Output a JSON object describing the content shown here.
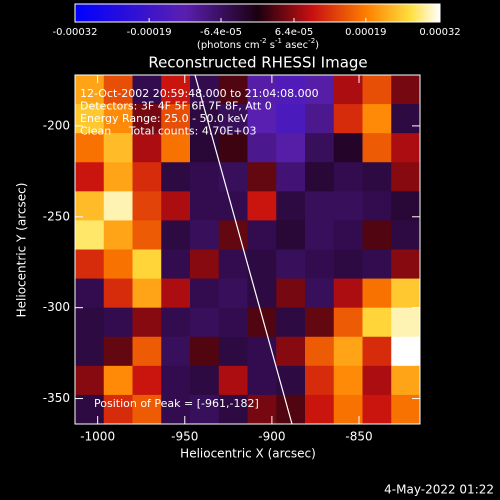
{
  "chart_data": {
    "type": "heatmap",
    "title": "Reconstructed RHESSI Image",
    "x_label": "Heliocentric X (arcsec)",
    "y_label": "Heliocentric Y (arcsec)",
    "colorbar_unit": [
      "(photons cm",
      "-2",
      " s",
      "-1",
      " asec",
      "-2",
      ")"
    ],
    "annotations": [
      "12-Oct-2002 20:59:48.000 to 21:04:08.000",
      "Detectors: 3F 4F 5F 6F 7F 8F, Att 0",
      "Energy Range: 25.0 - 50.0 keV",
      "Clean     Total counts: 4.70E+03"
    ],
    "peak_label": "Position of Peak = [-961,-182]",
    "footer": "4-May-2022 01:22",
    "xlim": [
      -1013,
      -815
    ],
    "xticks": [
      -1000,
      -950,
      -900,
      -850
    ],
    "ylim": [
      -364,
      -172
    ],
    "yticks": [
      -350,
      -300,
      -250,
      -200
    ],
    "zlim": [
      -0.00032,
      0.00032
    ],
    "zticks": [
      -0.00032,
      -0.00019,
      {
        "value": -6.4e-05,
        "label": "-6.4e-05"
      },
      {
        "value": 6.4e-05,
        "label": "6.4e-05"
      },
      0.00019,
      0.00032
    ],
    "z": [
      [
        0.00022,
        0.00015,
        -5e-05,
        0.0001,
        -5e-05,
        3e-05,
        -0.00012,
        -0.00015,
        -0.00012,
        8e-05,
        0.00015,
        5e-05
      ],
      [
        0.00025,
        0.0002,
        5e-05,
        0.00015,
        -4e-05,
        -6e-05,
        -0.00013,
        -0.00016,
        -0.0001,
        0.00012,
        0.0002,
        -4e-05
      ],
      [
        0.00018,
        0.00024,
        8e-05,
        0.00018,
        -3e-05,
        2e-05,
        -0.0001,
        -0.00012,
        -6e-05,
        -2e-05,
        0.00016,
        8e-05
      ],
      [
        0.0001,
        0.00022,
        0.00012,
        -4e-05,
        -5e-05,
        -6e-05,
        4e-05,
        -8e-05,
        -3e-05,
        -5e-05,
        -4e-05,
        6e-05
      ],
      [
        0.00024,
        0.0003,
        0.00014,
        8e-05,
        -5e-05,
        -5e-05,
        0.0001,
        -4e-05,
        -6e-05,
        -6e-05,
        -5e-05,
        -3e-05
      ],
      [
        0.00028,
        0.00022,
        0.00016,
        -4e-05,
        -6e-05,
        4e-05,
        -5e-05,
        -3e-05,
        -6e-05,
        -5e-05,
        3e-05,
        -4e-05
      ],
      [
        0.00012,
        0.00018,
        0.00026,
        -5e-05,
        6e-05,
        -5e-05,
        -4e-05,
        -6e-05,
        -5e-05,
        -4e-05,
        -5e-05,
        6e-05
      ],
      [
        -5e-05,
        0.00012,
        0.00022,
        8e-05,
        -5e-05,
        -6e-05,
        -4e-05,
        5e-05,
        -6e-05,
        8e-05,
        0.00018,
        0.00025
      ],
      [
        -4e-05,
        -5e-05,
        6e-05,
        -5e-05,
        -6e-05,
        -5e-05,
        3e-05,
        -4e-05,
        4e-05,
        0.00016,
        0.00026,
        0.0003
      ],
      [
        -4e-05,
        4e-05,
        0.00016,
        -6e-05,
        3e-05,
        -4e-05,
        -5e-05,
        6e-05,
        0.00016,
        0.00022,
        0.00012,
        0.00032
      ],
      [
        6e-05,
        0.0002,
        0.0001,
        -5e-05,
        -4e-05,
        8e-05,
        -5e-05,
        -4e-05,
        0.00012,
        0.0002,
        8e-05,
        0.00022
      ],
      [
        -4e-05,
        0.00012,
        0.00016,
        -5e-05,
        -6e-05,
        -4e-05,
        5e-05,
        3e-05,
        0.0001,
        0.00018,
        0.0001,
        0.00018
      ]
    ]
  }
}
